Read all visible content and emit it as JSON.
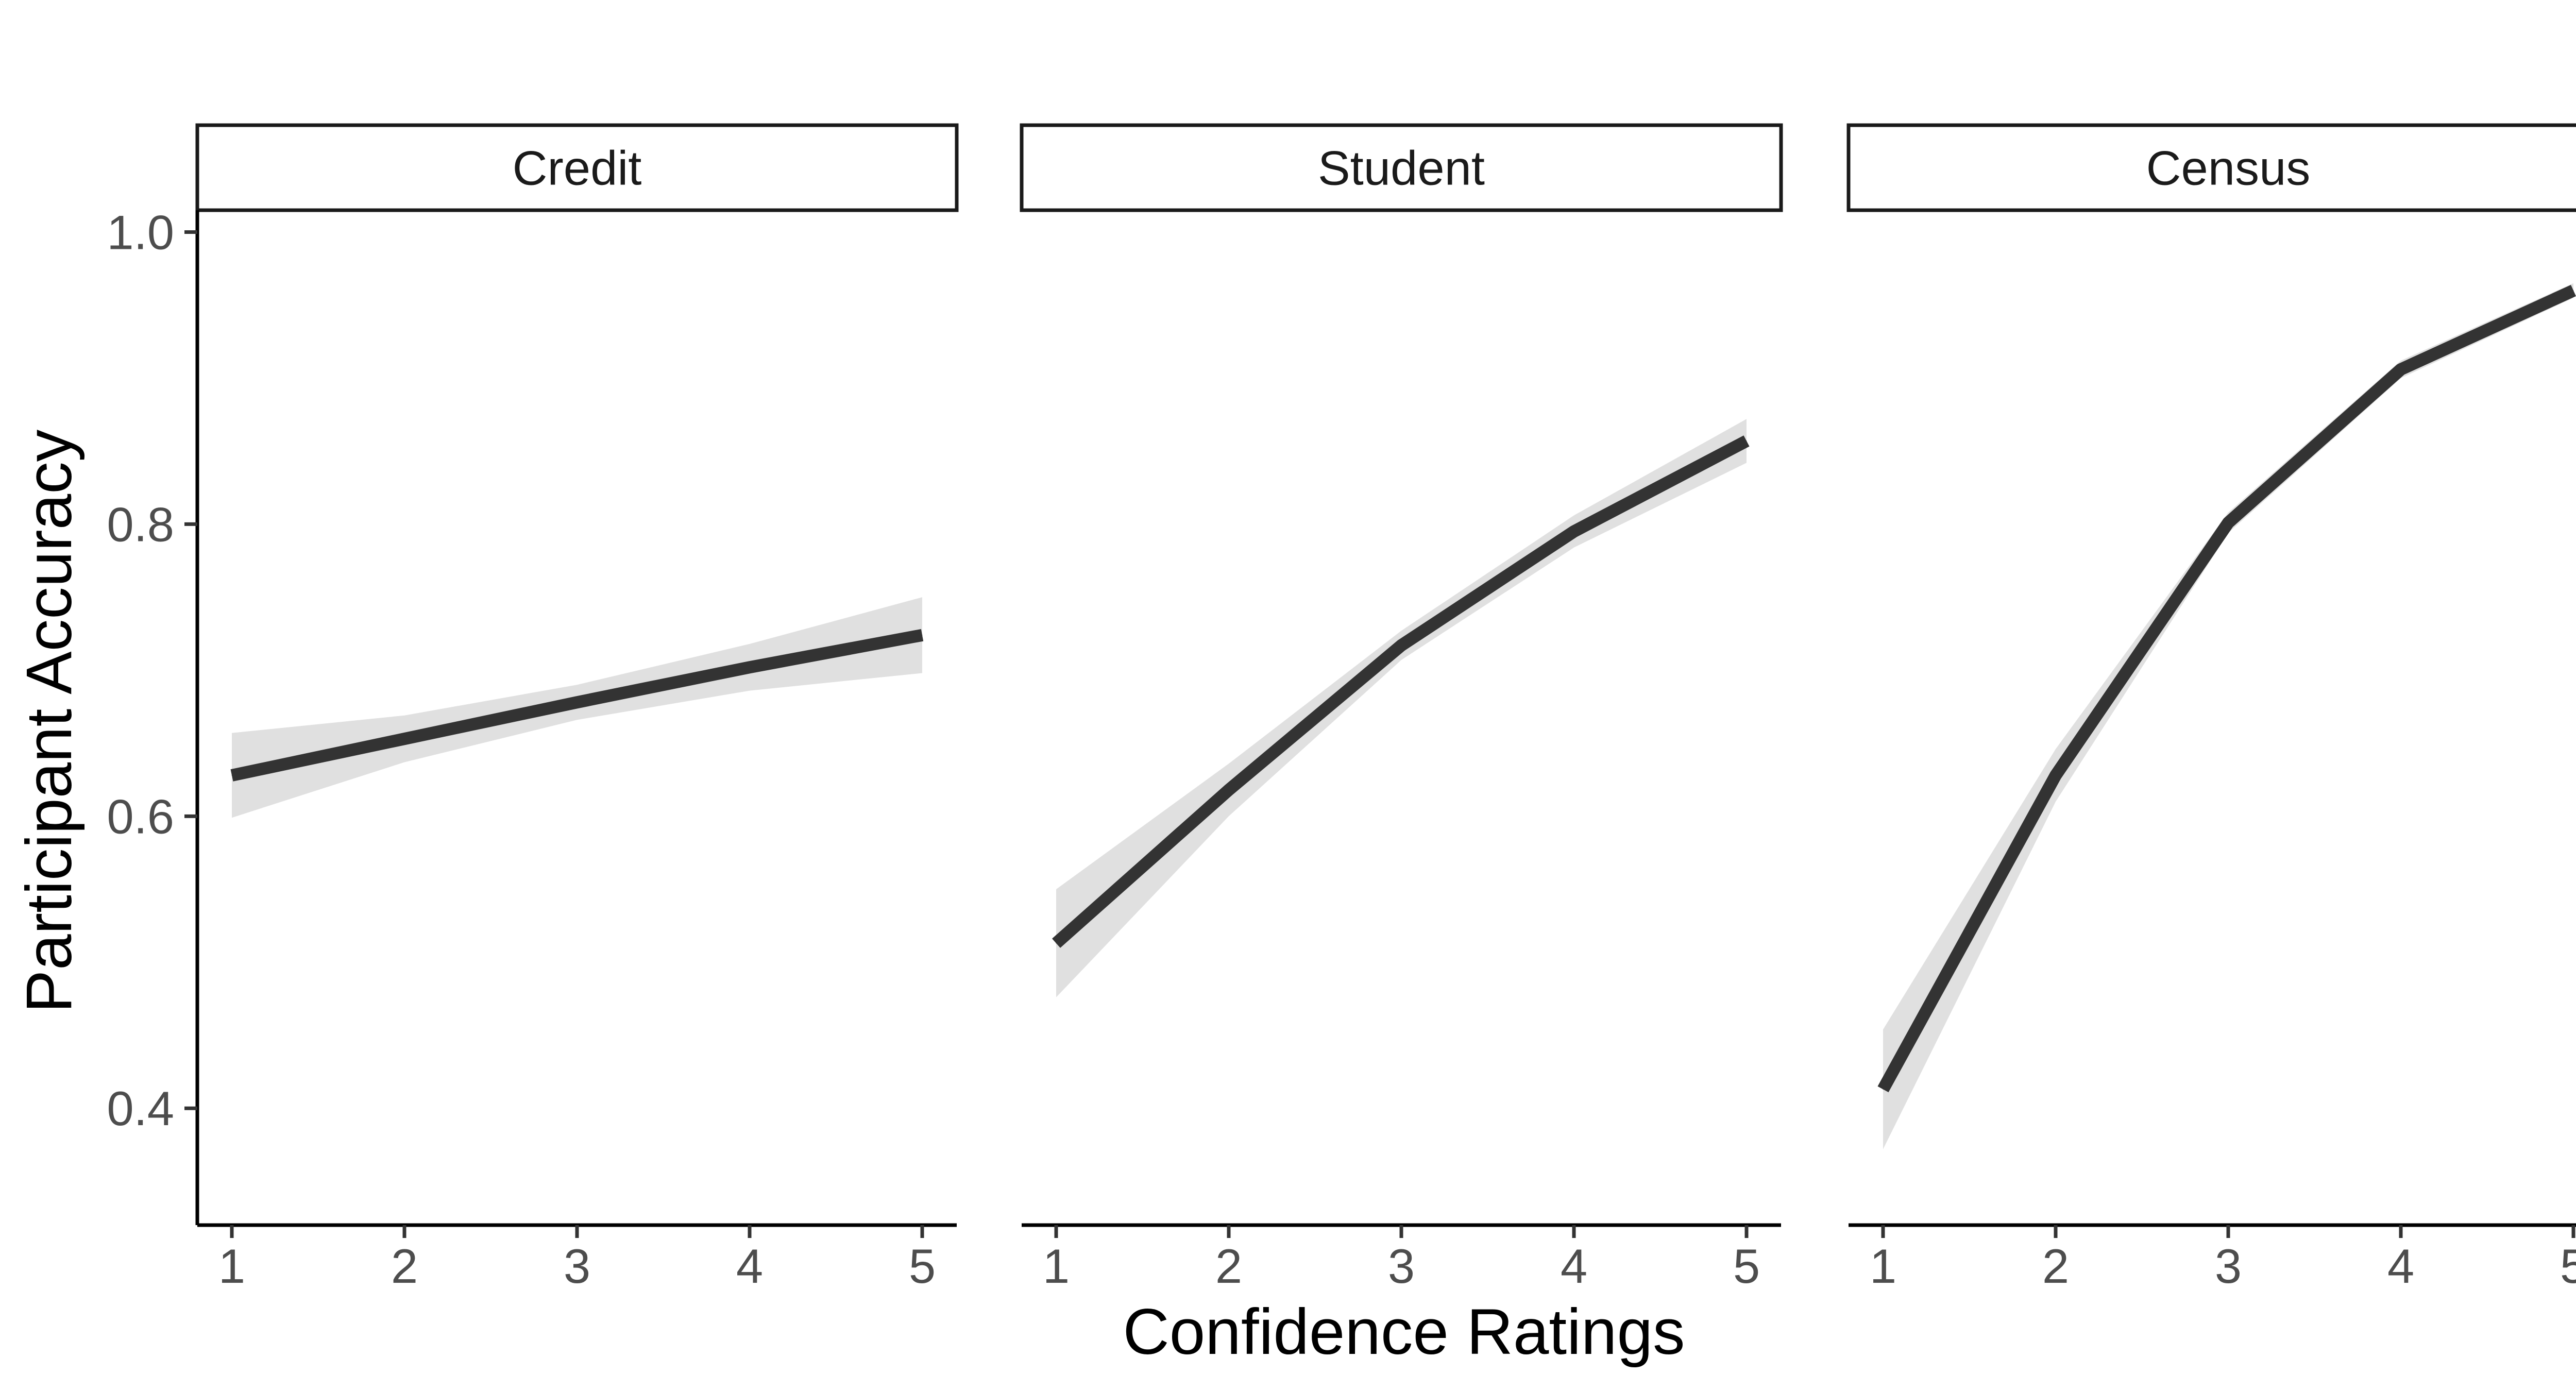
{
  "chart_data": {
    "type": "line",
    "xlabel": "Confidence Ratings",
    "ylabel": "Participant Accuracy",
    "x": [
      1,
      2,
      3,
      4,
      5
    ],
    "xlim": [
      0.8,
      5.2
    ],
    "ylim": [
      0.32,
      1.015
    ],
    "yticks": [
      0.4,
      0.6,
      0.8,
      1.0
    ],
    "ytick_labels": [
      "0.4",
      "0.6",
      "0.8",
      "1.0"
    ],
    "xtick_labels": [
      "1",
      "2",
      "3",
      "4",
      "5"
    ],
    "line_color": "#333333",
    "ribbon_color": "#e0e0e0",
    "panels": [
      {
        "title": "Credit",
        "values": [
          0.628,
          0.653,
          0.678,
          0.702,
          0.724
        ],
        "lower": [
          0.599,
          0.637,
          0.666,
          0.686,
          0.698
        ],
        "upper": [
          0.657,
          0.669,
          0.69,
          0.718,
          0.75
        ]
      },
      {
        "title": "Student",
        "values": [
          0.513,
          0.618,
          0.717,
          0.795,
          0.857
        ],
        "lower": [
          0.476,
          0.6,
          0.707,
          0.784,
          0.842
        ],
        "upper": [
          0.55,
          0.636,
          0.727,
          0.806,
          0.872
        ]
      },
      {
        "title": "Census",
        "values": [
          0.413,
          0.628,
          0.801,
          0.906,
          0.96
        ],
        "lower": [
          0.372,
          0.61,
          0.794,
          0.9,
          0.955
        ],
        "upper": [
          0.454,
          0.646,
          0.808,
          0.912,
          0.965
        ]
      }
    ]
  }
}
